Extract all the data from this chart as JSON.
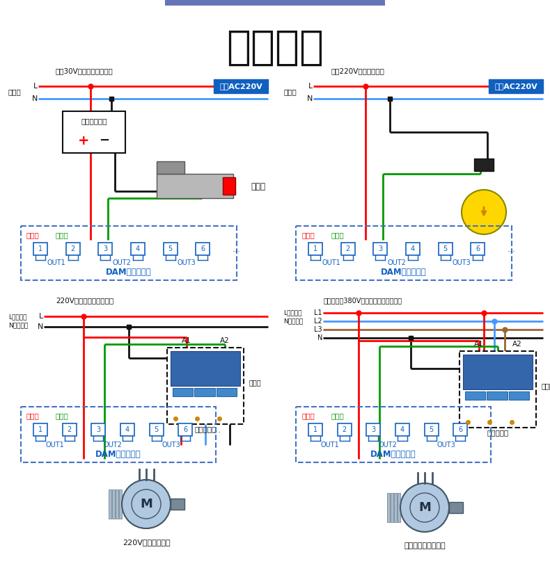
{
  "title": "输出接线",
  "title_fontsize": 42,
  "bg_color": "#ffffff",
  "top_bar_color": "#6674B8",
  "red": "#ff0000",
  "blue_line": "#4499ff",
  "blue2": "#0070c0",
  "green": "#009900",
  "black": "#111111",
  "brown": "#996633",
  "box_blue": "#1060c0",
  "dashed_blue": "#4472c4",
  "gray_line": "#888888",
  "section_tl": {
    "subtitle": "直流30V以下设备接线方法",
    "power_label": "电源端",
    "linecoi_label": "线圈AC220V",
    "device_label": "被控设备电源",
    "device_plus": "+",
    "device_minus": "−",
    "right_label": "电磁阀",
    "gonggong": "公共端",
    "chankai": "常开端",
    "dam": "DAM数采控制器",
    "out_labels": [
      "OUT1",
      "OUT2",
      "OUT3"
    ],
    "terminals": [
      1,
      2,
      3,
      4,
      5,
      6
    ]
  },
  "section_tr": {
    "subtitle": "交流220V设备接线方法",
    "power_label": "电源端",
    "linecoi_label": "线圈AC220V",
    "gonggong": "公共端",
    "chankai": "常开端",
    "dam": "DAM数采控制器",
    "out_labels": [
      "OUT1",
      "OUT2",
      "OUT3"
    ],
    "terminals": [
      1,
      2,
      3,
      4,
      5,
      6
    ]
  },
  "section_bl": {
    "subtitle": "220V接交流接触器接线图",
    "L_label": "L代表火线",
    "N_label": "N代表零线",
    "contactor_label": "交流接触器",
    "main_contact": "主触点",
    "motor_label": "220V功率较大设备",
    "gonggong": "公共端",
    "chankai": "常开端",
    "dam": "DAM数采控制器",
    "out_labels": [
      "OUT1",
      "OUT2",
      "OUT3"
    ],
    "terminals": [
      1,
      2,
      3,
      4,
      5,
      6
    ]
  },
  "section_br": {
    "subtitle": "带零线交流380V接电机、泵等设备接线",
    "L_label": "L代表火线",
    "N_label": "N代表零线",
    "contactor_label": "交流接触器",
    "main_contact": "主触点",
    "motor_label": "电机、泵等大型设备",
    "gonggong": "公共端",
    "chankai": "常开端",
    "dam": "DAM数采控制器",
    "out_labels": [
      "OUT1",
      "OUT2",
      "OUT3"
    ],
    "terminals": [
      1,
      2,
      3,
      4,
      5,
      6
    ]
  }
}
